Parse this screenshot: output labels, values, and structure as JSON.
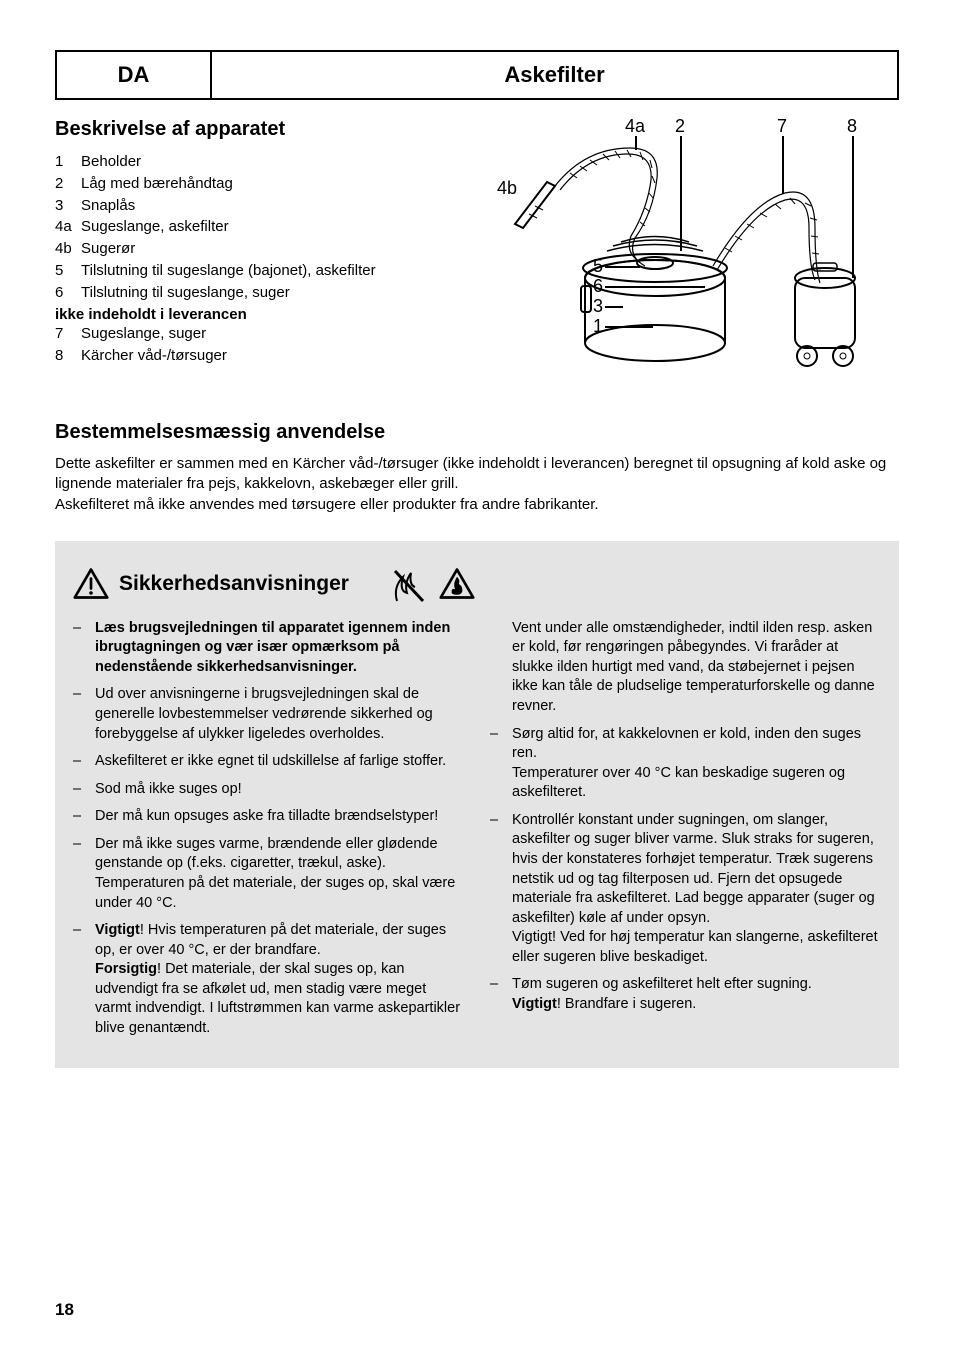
{
  "header": {
    "code": "DA",
    "title": "Askefilter"
  },
  "desc": {
    "heading": "Beskrivelse af apparatet",
    "items": [
      {
        "n": "1",
        "t": "Beholder"
      },
      {
        "n": "2",
        "t": "Låg med bærehåndtag"
      },
      {
        "n": "3",
        "t": "Snaplås"
      },
      {
        "n": "4a",
        "t": "Sugeslange, askefilter"
      },
      {
        "n": "4b",
        "t": "Sugerør"
      },
      {
        "n": "5",
        "t": "Tilslutning til sugeslange (bajonet), askefilter"
      },
      {
        "n": "6",
        "t": "Tilslutning til sugeslange, suger"
      }
    ],
    "not_included_heading": "ikke indeholdt i leverancen",
    "not_included": [
      {
        "n": "7",
        "t": "Sugeslange, suger"
      },
      {
        "n": "8",
        "t": "Kärcher våd-/tørsuger"
      }
    ]
  },
  "figure": {
    "labels": [
      "4a",
      "2",
      "7",
      "8",
      "4b",
      "5",
      "6",
      "3",
      "1"
    ]
  },
  "usage": {
    "heading": "Bestemmelsesmæssig anvendelse",
    "p1": "Dette askefilter er sammen med en Kärcher våd-/tørsuger (ikke indeholdt i leverancen) beregnet til opsugning af kold aske og lignende materialer fra pejs, kakkelovn, askebæger eller grill.",
    "p2": "Askefilteret må ikke anvendes med tørsugere eller produkter fra andre fabrikanter."
  },
  "safety": {
    "heading": "Sikkerhedsanvisninger",
    "left": [
      {
        "bold": true,
        "text": "Læs brugsvejledningen til apparatet igennem inden ibrugtagningen og vær især opmærksom på nedenstående sikkerhedsanvisninger."
      },
      {
        "text": "Ud over anvisningerne i brugsvejledningen skal de generelle lovbestemmelser vedrørende sikkerhed og forebyggelse af ulykker ligeledes overholdes."
      },
      {
        "text": "Askefilteret er ikke egnet til udskillelse af farlige stoffer."
      },
      {
        "text": "Sod må ikke suges op!"
      },
      {
        "text": "Der må kun opsuges aske fra tilladte brændselstyper!"
      },
      {
        "text": "Der må ikke suges varme, brændende eller glødende genstande op (f.eks. cigaretter, trækul, aske). Temperaturen på det materiale, der suges op, skal være under 40 °C."
      },
      {
        "html": "<b>Vigtigt</b>! Hvis temperaturen på det materiale, der suges op, er over 40 °C, er der brandfare.<br><b>Forsigtig</b>! Det materiale, der skal suges op, kan udvendigt fra se afkølet ud, men stadig være meget varmt indvendigt. I luftstrømmen kan varme askepartikler blive genantændt."
      }
    ],
    "right": [
      {
        "cont": true,
        "text": "Vent under alle omstændigheder, indtil ilden resp. asken er kold, før rengøringen påbegyndes. Vi fraråder at slukke ilden hurtigt med vand, da støbejernet i pejsen ikke kan tåle de pludselige temperaturforskelle og danne revner."
      },
      {
        "html": "Sørg altid for, at kakkelovnen er kold, inden den suges ren.<br>Temperaturer over 40 °C kan beskadige sugeren og askefilteret."
      },
      {
        "html": "Kontrollér konstant under sugningen, om slanger, askefilter og suger bliver varme. Sluk straks for sugeren, hvis der konstateres forhøjet temperatur. Træk sugerens netstik ud og tag filterposen ud. Fjern det opsugede materiale fra askefilteret. Lad begge apparater (suger og askefilter) køle af under opsyn.<br>Vigtigt! Ved for høj temperatur kan slangerne, askefilteret eller sugeren blive beskadiget."
      },
      {
        "html": "Tøm sugeren og askefilteret helt efter sugning.<br><b>Vigtigt</b>! Brandfare i sugeren."
      }
    ]
  },
  "pagenum": "18"
}
